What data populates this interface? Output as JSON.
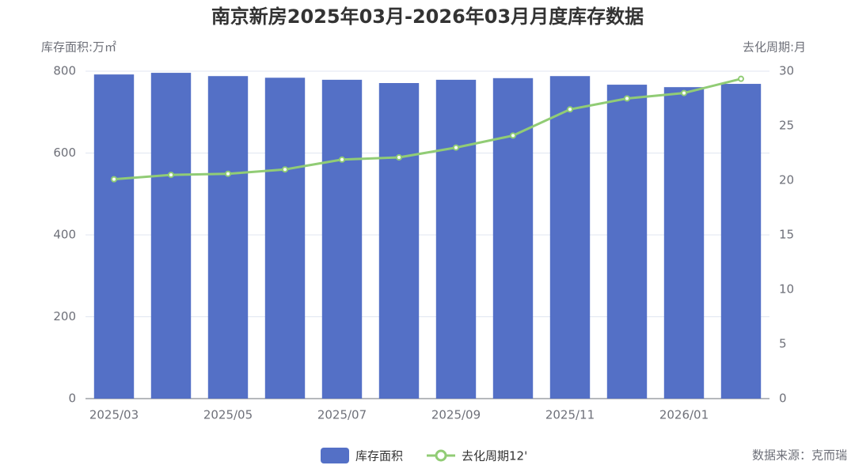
{
  "chart_data": {
    "type": "bar-line",
    "title": "南京新房2025年03月-2026年03月月度库存数据",
    "y_label": "库存面积:万㎡",
    "y2_label": "去化周期:月",
    "source": "数据来源：克而瑞",
    "categories": [
      "2025/03",
      null,
      "2025/05",
      null,
      "2025/07",
      null,
      "2025/09",
      null,
      "2025/11",
      null,
      "2026/01",
      null
    ],
    "series": [
      {
        "name": "库存面积",
        "type": "bar",
        "color": "#5470c6",
        "values": [
          792,
          796,
          788,
          784,
          779,
          771,
          779,
          783,
          788,
          767,
          761,
          769
        ]
      },
      {
        "name": "去化周期12'",
        "type": "line",
        "axis": "y2",
        "color": "#91cc75",
        "values": [
          20.1,
          20.5,
          20.6,
          21.0,
          21.9,
          22.1,
          23.0,
          24.1,
          26.5,
          27.5,
          28.0,
          29.3
        ]
      }
    ],
    "ylim": [
      0,
      800
    ],
    "yticks": [
      0,
      200,
      400,
      600,
      800
    ],
    "y2lim": [
      0,
      30
    ],
    "y2ticks": [
      0,
      5,
      10,
      15,
      20,
      25,
      30
    ],
    "grid": true,
    "legend": "bottom"
  }
}
